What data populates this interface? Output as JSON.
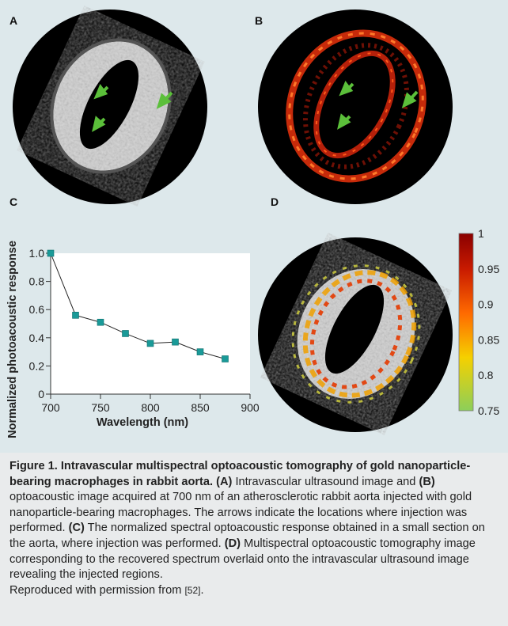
{
  "panels": {
    "A": "A",
    "B": "B",
    "C": "C",
    "D": "D"
  },
  "colors": {
    "background": "#dde8eb",
    "arrow": "#5bbf3a",
    "series": "#1a9a98",
    "colorbar_top": "#8a0000",
    "colorbar_mid": "#ff6a00",
    "colorbar_bottom": "#8ccf5a"
  },
  "chart_data": {
    "type": "line",
    "xlabel": "Wavelength (nm)",
    "ylabel": "Normalized photoacoustic response",
    "x": [
      700,
      725,
      750,
      775,
      800,
      825,
      850,
      875
    ],
    "y": [
      1.0,
      0.56,
      0.51,
      0.43,
      0.36,
      0.37,
      0.3,
      0.25
    ],
    "xlim": [
      700,
      900
    ],
    "ylim": [
      0,
      1.0
    ],
    "xticks": [
      "700",
      "750",
      "800",
      "850",
      "900"
    ],
    "yticks": [
      "0",
      "0.2",
      "0.4",
      "0.6",
      "0.8",
      "1.0"
    ],
    "grid": false,
    "marker": "square"
  },
  "colorbar": {
    "ticks": [
      "1",
      "0.95",
      "0.9",
      "0.85",
      "0.8",
      "0.75"
    ]
  },
  "caption": {
    "title": "Figure 1. Intravascular multispectral optoacoustic tomography of gold nanoparticle-bearing macrophages in rabbit aorta.",
    "label_a": "(A)",
    "text_a": " Intravascular ultrasound image and ",
    "label_b": "(B)",
    "text_b": " optoacoustic image acquired at 700 nm of an atherosclerotic rabbit aorta injected with gold nanoparticle-bearing macrophages. The arrows indicate the locations where injection was performed. ",
    "label_c": "(C)",
    "text_c": " The normalized spectral optoacoustic response obtained in a small section on the aorta, where injection was performed. ",
    "label_d": "(D)",
    "text_d": " Multispectral optoacoustic tomography image corresponding to the recovered spectrum overlaid onto the intravascular ultrasound image revealing the injected regions.",
    "reproduced": "Reproduced with permission from ",
    "ref": "[52]",
    "end": "."
  }
}
